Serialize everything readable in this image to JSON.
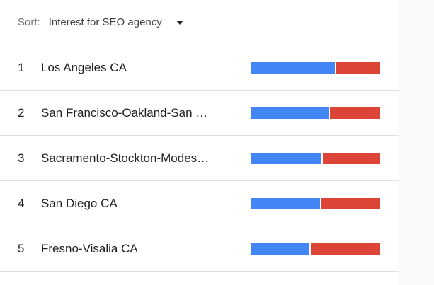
{
  "sort": {
    "label": "Sort:",
    "value": "Interest for SEO agency"
  },
  "colors": {
    "series_a": "#4285f4",
    "series_b": "#db4437"
  },
  "rows": [
    {
      "rank": "1",
      "name": "Los Angeles CA",
      "share_a": 0.66
    },
    {
      "rank": "2",
      "name": "San Francisco-Oakland-San Jose CA",
      "share_a": 0.61
    },
    {
      "rank": "3",
      "name": "Sacramento-Stockton-Modesto CA",
      "share_a": 0.55
    },
    {
      "rank": "4",
      "name": "San Diego CA",
      "share_a": 0.54
    },
    {
      "rank": "5",
      "name": "Fresno-Visalia CA",
      "share_a": 0.46
    }
  ]
}
